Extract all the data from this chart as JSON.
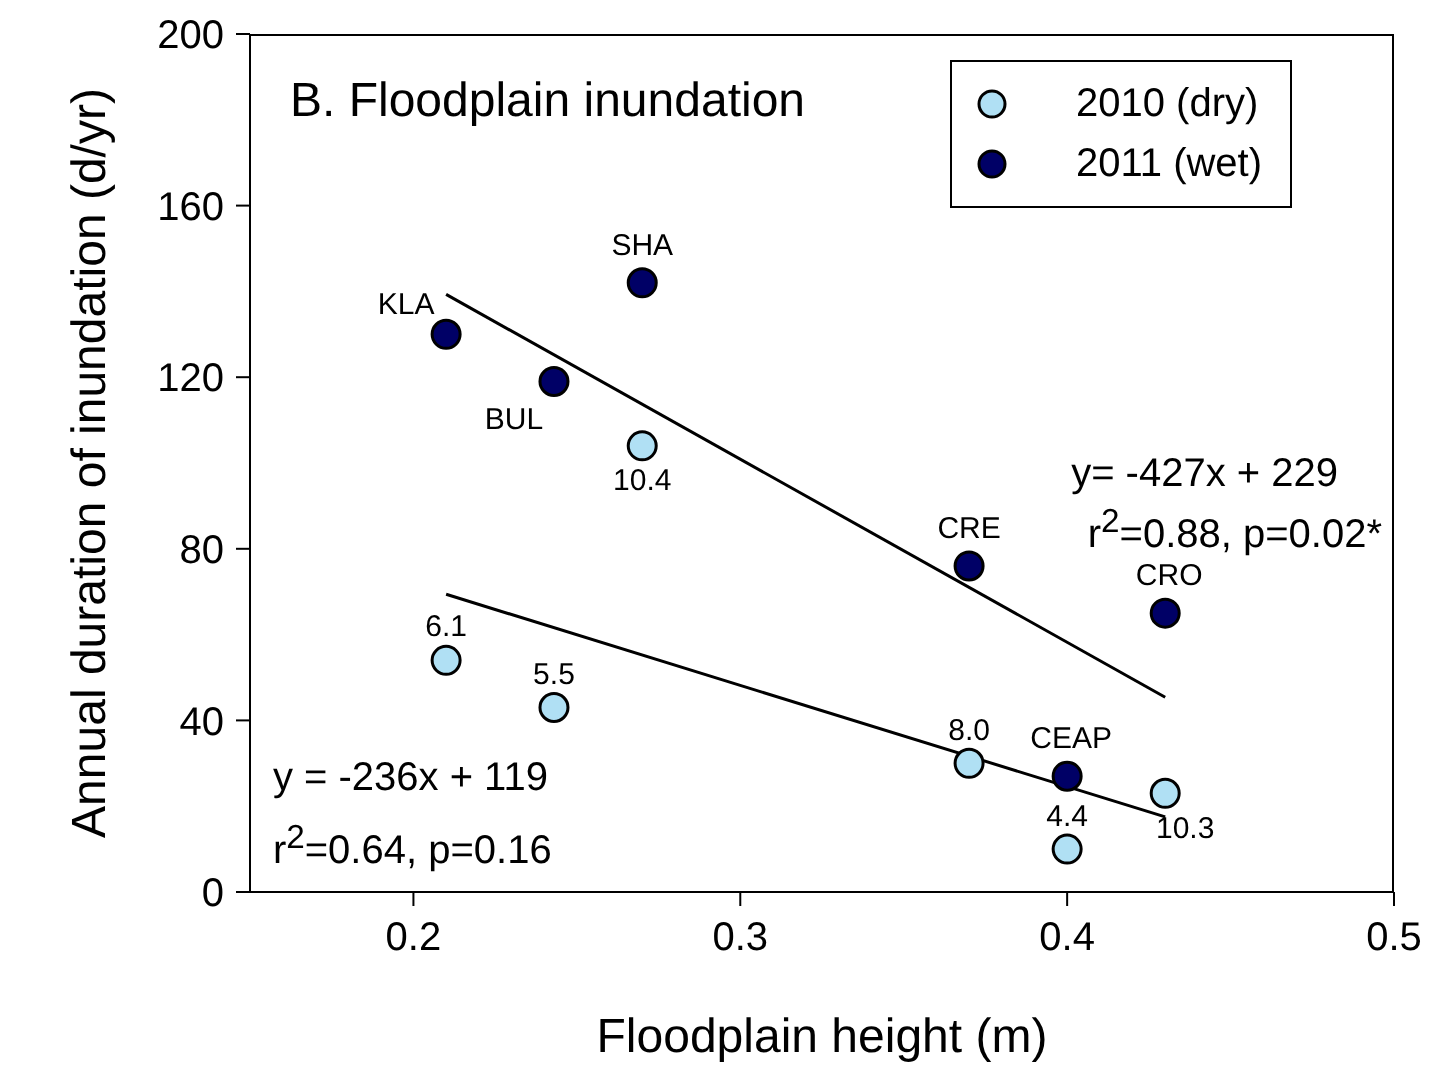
{
  "chart_data": {
    "type": "scatter",
    "title": "B. Floodplain inundation",
    "xlabel": "Floodplain height (m)",
    "ylabel": "Annual duration of inundation (d/yr)",
    "xlim": [
      0.15,
      0.5
    ],
    "xticks": [
      0.2,
      0.3,
      0.4,
      0.5
    ],
    "ylim": [
      0,
      200
    ],
    "yticks": [
      0,
      40,
      80,
      120,
      160,
      200
    ],
    "legend": "top right",
    "marker": "circle",
    "series": [
      {
        "name": "2010 (dry)",
        "color": "#b0e0f4",
        "x": [
          0.21,
          0.243,
          0.27,
          0.37,
          0.4,
          0.43
        ],
        "values": [
          54,
          43,
          104,
          30,
          10,
          23
        ]
      },
      {
        "name": "2011 (wet)",
        "color": "#000066",
        "x": [
          0.21,
          0.243,
          0.27,
          0.37,
          0.4,
          0.43
        ],
        "values": [
          130,
          119,
          142,
          76,
          27,
          65
        ],
        "value_labels": [
          "KLA",
          "BUL",
          "SHA",
          "CRE",
          "CEAP",
          "CRO"
        ]
      },
      {
        "type": "line",
        "marker": "none",
        "color": "#000000",
        "x": [
          0.21,
          0.43
        ],
        "values": [
          139.3,
          45.4
        ]
      },
      {
        "type": "line",
        "marker": "none",
        "color": "#000000",
        "x": [
          0.21,
          0.43
        ],
        "values": [
          69.4,
          17.5
        ]
      }
    ],
    "annotations": [
      "y= -427x + 229",
      "r$^{2}$=0.88, p=0.02*",
      "y = -236x + 119",
      "r$^{2}$=0.64, p=0.16",
      {
        "text": "6.1",
        "x": 0.21,
        "y": 54
      },
      {
        "text": "5.5",
        "x": 0.243,
        "y": 43
      },
      {
        "text": "10.4",
        "x": 0.27,
        "y": 104
      },
      {
        "text": "8.0",
        "x": 0.37,
        "y": 30
      },
      {
        "text": "4.4",
        "x": 0.4,
        "y": 10
      },
      {
        "text": "10.3",
        "x": 0.43,
        "y": 23
      }
    ]
  }
}
